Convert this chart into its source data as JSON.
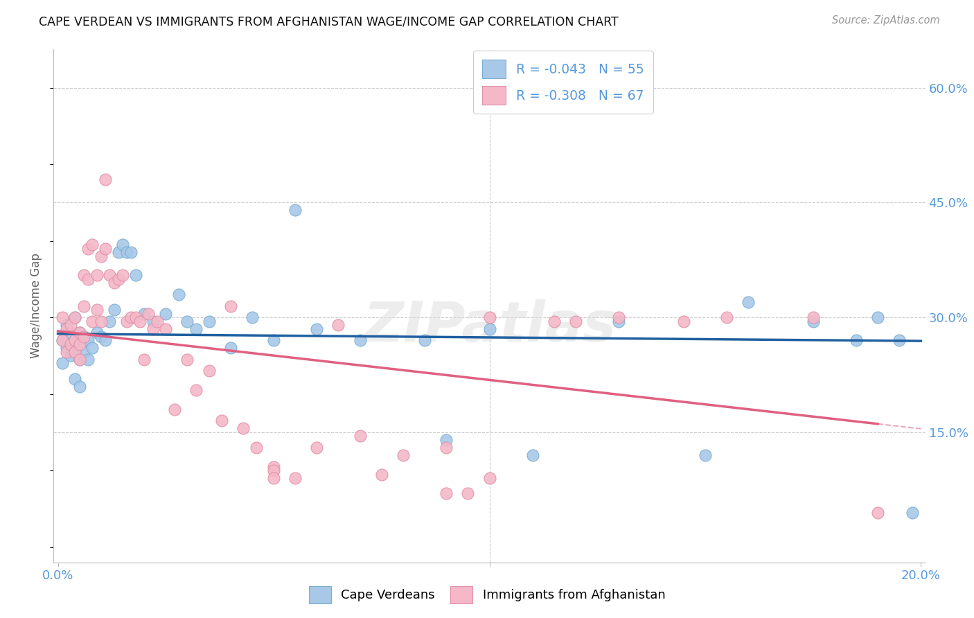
{
  "title": "CAPE VERDEAN VS IMMIGRANTS FROM AFGHANISTAN WAGE/INCOME GAP CORRELATION CHART",
  "source": "Source: ZipAtlas.com",
  "ylabel": "Wage/Income Gap",
  "watermark": "ZIPatlas",
  "legend_labels": [
    "Cape Verdeans",
    "Immigrants from Afghanistan"
  ],
  "legend_r1": "-0.043",
  "legend_n1": "55",
  "legend_r2": "-0.308",
  "legend_n2": "67",
  "color_blue": "#a8c8e8",
  "color_pink": "#f4b8c8",
  "color_blue_edge": "#7aaed0",
  "color_pink_edge": "#e090a8",
  "color_blue_line": "#2060a0",
  "color_pink_line": "#e06080",
  "color_axis_text": "#5599dd",
  "background": "#ffffff",
  "grid_color": "#cccccc",
  "xmin": 0.0,
  "xmax": 0.2,
  "ymin": 0.0,
  "ymax": 0.65,
  "blue_x": [
    0.001,
    0.001,
    0.002,
    0.002,
    0.003,
    0.003,
    0.003,
    0.004,
    0.004,
    0.004,
    0.004,
    0.005,
    0.005,
    0.005,
    0.005,
    0.006,
    0.006,
    0.007,
    0.007,
    0.008,
    0.009,
    0.01,
    0.011,
    0.012,
    0.013,
    0.014,
    0.015,
    0.016,
    0.017,
    0.018,
    0.02,
    0.022,
    0.025,
    0.028,
    0.03,
    0.032,
    0.035,
    0.04,
    0.045,
    0.05,
    0.055,
    0.06,
    0.07,
    0.085,
    0.09,
    0.1,
    0.11,
    0.13,
    0.15,
    0.16,
    0.175,
    0.185,
    0.19,
    0.195,
    0.198
  ],
  "blue_y": [
    0.27,
    0.24,
    0.29,
    0.26,
    0.28,
    0.265,
    0.25,
    0.3,
    0.27,
    0.255,
    0.22,
    0.28,
    0.265,
    0.245,
    0.21,
    0.275,
    0.255,
    0.27,
    0.245,
    0.26,
    0.28,
    0.275,
    0.27,
    0.295,
    0.31,
    0.385,
    0.395,
    0.385,
    0.385,
    0.355,
    0.305,
    0.295,
    0.305,
    0.33,
    0.295,
    0.285,
    0.295,
    0.26,
    0.3,
    0.27,
    0.44,
    0.285,
    0.27,
    0.27,
    0.14,
    0.285,
    0.12,
    0.295,
    0.12,
    0.32,
    0.295,
    0.27,
    0.3,
    0.27,
    0.045
  ],
  "pink_x": [
    0.001,
    0.001,
    0.002,
    0.002,
    0.003,
    0.003,
    0.004,
    0.004,
    0.004,
    0.005,
    0.005,
    0.005,
    0.006,
    0.006,
    0.006,
    0.007,
    0.007,
    0.008,
    0.008,
    0.009,
    0.009,
    0.01,
    0.01,
    0.011,
    0.011,
    0.012,
    0.013,
    0.014,
    0.015,
    0.016,
    0.017,
    0.018,
    0.019,
    0.02,
    0.021,
    0.022,
    0.023,
    0.025,
    0.027,
    0.03,
    0.032,
    0.035,
    0.038,
    0.04,
    0.043,
    0.046,
    0.05,
    0.055,
    0.06,
    0.065,
    0.07,
    0.075,
    0.08,
    0.09,
    0.095,
    0.1,
    0.05,
    0.05,
    0.09,
    0.1,
    0.115,
    0.12,
    0.13,
    0.145,
    0.155,
    0.175,
    0.19
  ],
  "pink_y": [
    0.3,
    0.27,
    0.285,
    0.255,
    0.29,
    0.265,
    0.3,
    0.27,
    0.255,
    0.28,
    0.265,
    0.245,
    0.355,
    0.315,
    0.275,
    0.39,
    0.35,
    0.395,
    0.295,
    0.355,
    0.31,
    0.38,
    0.295,
    0.48,
    0.39,
    0.355,
    0.345,
    0.35,
    0.355,
    0.295,
    0.3,
    0.3,
    0.295,
    0.245,
    0.305,
    0.285,
    0.295,
    0.285,
    0.18,
    0.245,
    0.205,
    0.23,
    0.165,
    0.315,
    0.155,
    0.13,
    0.105,
    0.09,
    0.13,
    0.29,
    0.145,
    0.095,
    0.12,
    0.13,
    0.07,
    0.09,
    0.1,
    0.09,
    0.07,
    0.3,
    0.295,
    0.295,
    0.3,
    0.295,
    0.3,
    0.3,
    0.045
  ]
}
